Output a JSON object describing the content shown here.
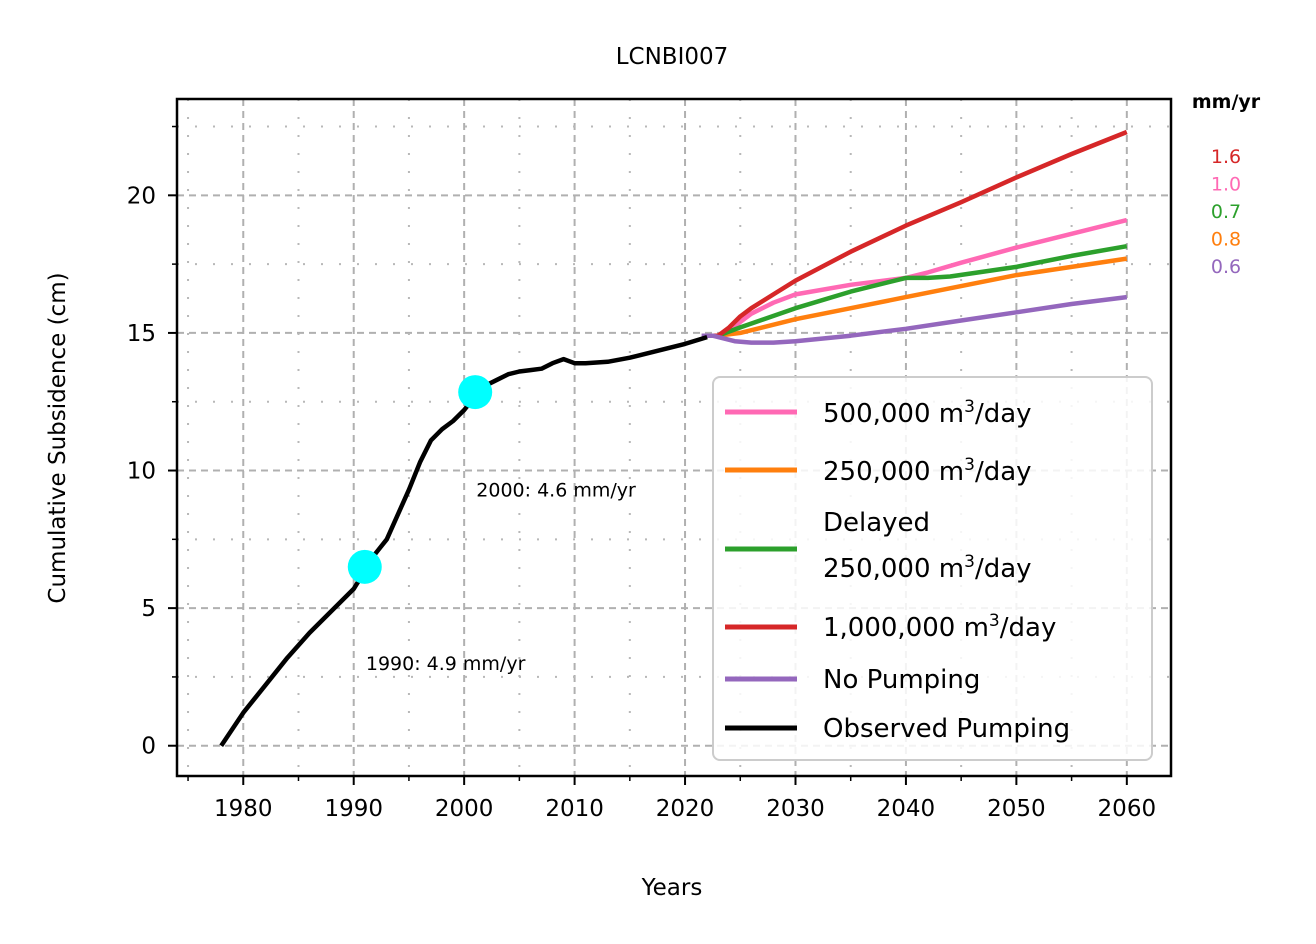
{
  "chart_data": {
    "type": "line",
    "title": "LCNBI007",
    "xlabel": "Years",
    "ylabel": "Cumulative Subsidence (cm)",
    "xlim": [
      1974,
      2064
    ],
    "ylim": [
      -1.1,
      23.5
    ],
    "xticks": [
      1980,
      1990,
      2000,
      2010,
      2020,
      2030,
      2040,
      2050,
      2060
    ],
    "yticks": [
      0,
      5,
      10,
      15,
      20
    ],
    "grid": true,
    "legend_placement": "lower-right",
    "series": [
      {
        "name": "500,000 m",
        "unit_sup": "3",
        "unit_tail": "/day",
        "color": "#ff69b4",
        "points": [
          [
            2022,
            14.9
          ],
          [
            2023,
            14.9
          ],
          [
            2024,
            15.05
          ],
          [
            2025,
            15.4
          ],
          [
            2026,
            15.7
          ],
          [
            2028,
            16.1
          ],
          [
            2030,
            16.4
          ],
          [
            2035,
            16.75
          ],
          [
            2040,
            17.0
          ],
          [
            2042,
            17.2
          ],
          [
            2045,
            17.55
          ],
          [
            2050,
            18.1
          ],
          [
            2055,
            18.6
          ],
          [
            2060,
            19.1
          ]
        ]
      },
      {
        "name": "250,000 m",
        "unit_sup": "3",
        "unit_tail": "/day",
        "color": "#ff7f0e",
        "points": [
          [
            2022,
            14.9
          ],
          [
            2023,
            14.9
          ],
          [
            2024,
            14.95
          ],
          [
            2025,
            15.0
          ],
          [
            2030,
            15.5
          ],
          [
            2035,
            15.9
          ],
          [
            2040,
            16.3
          ],
          [
            2045,
            16.7
          ],
          [
            2050,
            17.1
          ],
          [
            2055,
            17.4
          ],
          [
            2060,
            17.7
          ]
        ]
      },
      {
        "name": "Delayed",
        "name_line2": "250,000 m",
        "unit_sup": "3",
        "unit_tail": "/day",
        "color": "#2ca02c",
        "points": [
          [
            2022,
            14.9
          ],
          [
            2023,
            14.9
          ],
          [
            2024,
            15.05
          ],
          [
            2025,
            15.2
          ],
          [
            2030,
            15.9
          ],
          [
            2035,
            16.5
          ],
          [
            2040,
            17.0
          ],
          [
            2042,
            17.0
          ],
          [
            2044,
            17.05
          ],
          [
            2050,
            17.4
          ],
          [
            2055,
            17.8
          ],
          [
            2060,
            18.15
          ]
        ]
      },
      {
        "name": "1,000,000 m",
        "unit_sup": "3",
        "unit_tail": "/day",
        "color": "#d62728",
        "points": [
          [
            2022,
            14.9
          ],
          [
            2023,
            14.9
          ],
          [
            2024,
            15.2
          ],
          [
            2025,
            15.6
          ],
          [
            2026,
            15.9
          ],
          [
            2028,
            16.4
          ],
          [
            2030,
            16.9
          ],
          [
            2035,
            17.95
          ],
          [
            2040,
            18.9
          ],
          [
            2045,
            19.75
          ],
          [
            2050,
            20.65
          ],
          [
            2055,
            21.5
          ],
          [
            2060,
            22.3
          ]
        ]
      },
      {
        "name": "No Pumping",
        "color": "#9467bd",
        "points": [
          [
            2021.5,
            14.9
          ],
          [
            2022.5,
            14.9
          ],
          [
            2023.5,
            14.8
          ],
          [
            2024.5,
            14.7
          ],
          [
            2026,
            14.65
          ],
          [
            2028,
            14.65
          ],
          [
            2030,
            14.7
          ],
          [
            2035,
            14.9
          ],
          [
            2040,
            15.15
          ],
          [
            2045,
            15.45
          ],
          [
            2050,
            15.75
          ],
          [
            2055,
            16.05
          ],
          [
            2060,
            16.3
          ]
        ]
      },
      {
        "name": "Observed Pumping",
        "color": "#000000",
        "points": [
          [
            1978,
            0.0
          ],
          [
            1980,
            1.2
          ],
          [
            1982,
            2.2
          ],
          [
            1984,
            3.2
          ],
          [
            1986,
            4.1
          ],
          [
            1988,
            4.9
          ],
          [
            1990,
            5.7
          ],
          [
            1992,
            7.0
          ],
          [
            1993,
            7.5
          ],
          [
            1995,
            9.3
          ],
          [
            1996,
            10.3
          ],
          [
            1997,
            11.1
          ],
          [
            1998,
            11.5
          ],
          [
            1999,
            11.8
          ],
          [
            2000,
            12.2
          ],
          [
            2001,
            12.7
          ],
          [
            2002,
            13.1
          ],
          [
            2003,
            13.3
          ],
          [
            2004,
            13.5
          ],
          [
            2005,
            13.6
          ],
          [
            2006,
            13.65
          ],
          [
            2007,
            13.7
          ],
          [
            2008,
            13.9
          ],
          [
            2009,
            14.05
          ],
          [
            2010,
            13.9
          ],
          [
            2011,
            13.9
          ],
          [
            2013,
            13.95
          ],
          [
            2015,
            14.1
          ],
          [
            2018,
            14.4
          ],
          [
            2020,
            14.6
          ],
          [
            2022,
            14.85
          ]
        ]
      }
    ],
    "highlight_points": [
      [
        1991,
        6.5
      ],
      [
        2001,
        12.85
      ]
    ],
    "highlight_color": "#00ffff",
    "annotations": [
      {
        "text": "2000: 4.6 mm/yr",
        "x": 2001.1,
        "y": 9.05
      },
      {
        "text": "1990: 4.9 mm/yr",
        "x": 1991.1,
        "y": 2.75
      }
    ],
    "rate_header": "mm/yr",
    "rates": [
      {
        "value": "1.6",
        "color": "#d62728"
      },
      {
        "value": "1.0",
        "color": "#ff69b4"
      },
      {
        "value": "0.7",
        "color": "#2ca02c"
      },
      {
        "value": "0.8",
        "color": "#ff7f0e"
      },
      {
        "value": "0.6",
        "color": "#9467bd"
      }
    ]
  }
}
